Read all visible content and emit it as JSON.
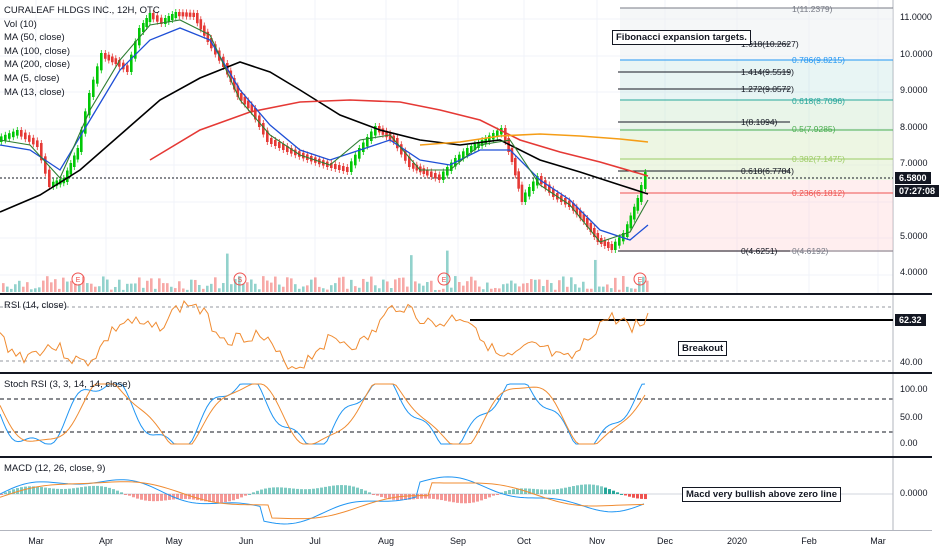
{
  "symbol_line": "CURALEAF HLDGS INC., 12H, OTC",
  "indicators": [
    "Vol (10)",
    "MA (50, close)",
    "MA (100, close)",
    "MA (200, close)",
    "MA (5, close)",
    "MA (13, close)"
  ],
  "price_axis": [
    "11.0000",
    "10.0000",
    "9.0000",
    "8.0000",
    "7.0000",
    "5.0000",
    "4.0000"
  ],
  "last_price": "6.5800",
  "countdown": "07:27:08",
  "fib_right": [
    {
      "label": "1(11.2379)",
      "color": "#787b86"
    },
    {
      "label": "0.786(9.8215)",
      "color": "#2196f3"
    },
    {
      "label": "0.618(8.7096)",
      "color": "#26a69a"
    },
    {
      "label": "0.5(7.9285)",
      "color": "#4caf50"
    },
    {
      "label": "0.382(7.1475)",
      "color": "#9ccc65"
    },
    {
      "label": "0.236(6.1812)",
      "color": "#ef5350"
    },
    {
      "label": "0(4.6192)",
      "color": "#787b86"
    }
  ],
  "fib_left": [
    {
      "label": "1.618(10.2627)",
      "color": "#131722"
    },
    {
      "label": "1.414(9.5519)",
      "color": "#131722"
    },
    {
      "label": "1.272(9.0572)",
      "color": "#131722"
    },
    {
      "label": "1(8.1094)",
      "color": "#131722"
    },
    {
      "label": "0.618(6.7784)",
      "color": "#131722"
    },
    {
      "label": "0(4.6251)",
      "color": "#131722"
    }
  ],
  "annotations": {
    "fib_title": "Fibonacci expansion targets.",
    "breakout": "Breakout",
    "macd_note": "Macd very bullish above zero line"
  },
  "rsi": {
    "legend": "RSI (14, close)",
    "axis": [
      "40.00"
    ],
    "value": "62.32"
  },
  "stoch": {
    "legend": "Stoch RSI (3, 3, 14, 14, close)",
    "axis": [
      "100.00",
      "50.00",
      "0.00"
    ]
  },
  "macd": {
    "legend": "MACD (12, 26, close, 9)",
    "axis": [
      "0.0000"
    ]
  },
  "event_markers": [
    "E",
    "S",
    "E",
    "E"
  ],
  "x_axis": [
    "Mar",
    "Apr",
    "May",
    "Jun",
    "Jul",
    "Aug",
    "Sep",
    "Oct",
    "Nov",
    "Dec",
    "2020",
    "Feb",
    "Mar"
  ],
  "colors": {
    "up": "#26a69a",
    "down": "#ef5350",
    "bull_candle": "#00c805",
    "bear_candle": "#e53935",
    "ma_black": "#000000",
    "ma_red": "#e53935",
    "ma_orange": "#f59d16",
    "ma_blue": "#1e4fd6",
    "ma_green": "#2e7d32",
    "rsi_line": "#f08c32"
  }
}
